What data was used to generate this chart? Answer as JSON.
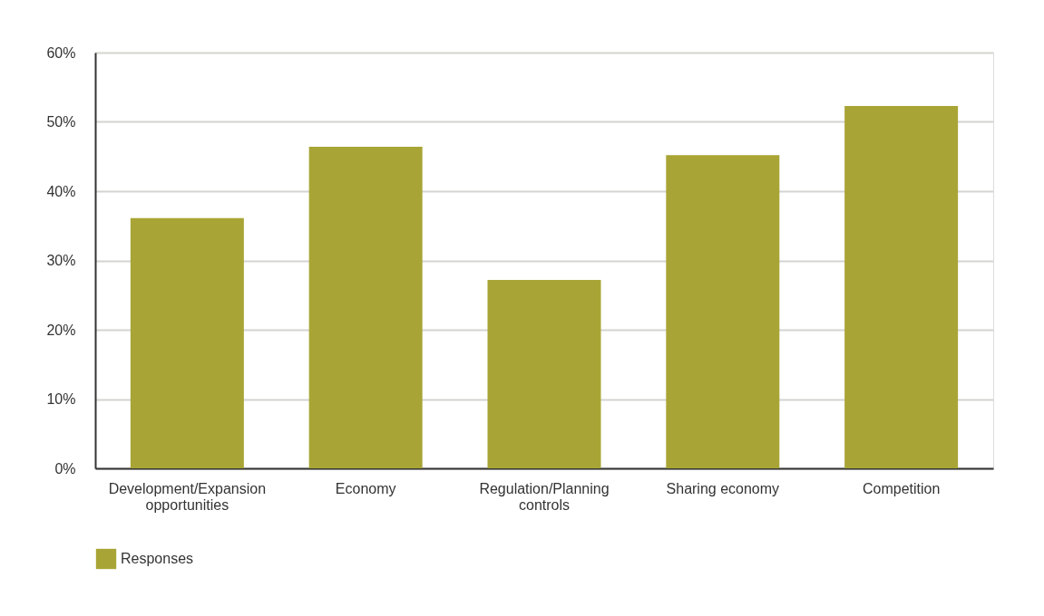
{
  "chart_data": {
    "type": "bar",
    "categories": [
      "Development/Expansion opportunities",
      "Economy",
      "Regulation/Planning controls",
      "Sharing economy",
      "Competition"
    ],
    "series": [
      {
        "name": "Responses",
        "color": "#a8a536",
        "values": [
          36.1,
          46.4,
          27.2,
          45.2,
          52.3
        ]
      }
    ],
    "ylim": [
      0,
      60
    ],
    "yticks": [
      {
        "value": 0,
        "label": "0%"
      },
      {
        "value": 10,
        "label": "10%"
      },
      {
        "value": 20,
        "label": "20%"
      },
      {
        "value": 30,
        "label": "30%"
      },
      {
        "value": 40,
        "label": "40%"
      },
      {
        "value": 50,
        "label": "50%"
      },
      {
        "value": 60,
        "label": "60%"
      }
    ],
    "grid": "y",
    "legend": "bottom"
  }
}
